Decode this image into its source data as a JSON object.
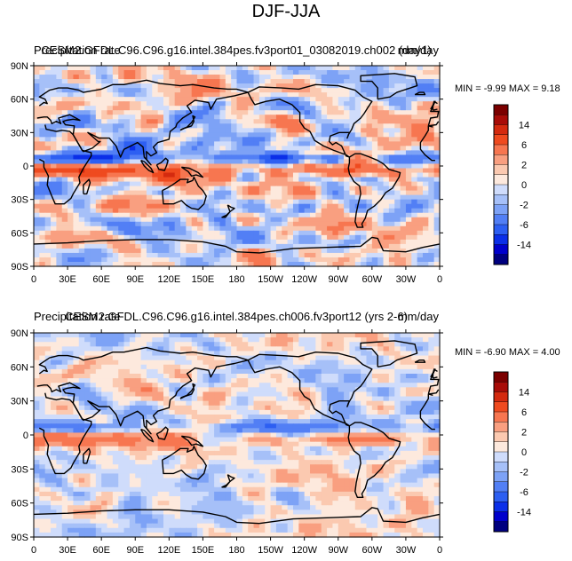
{
  "title": "DJF-JJA",
  "colors": {
    "levels": [
      "#00007f",
      "#0000cc",
      "#0b2fe8",
      "#2d5ff2",
      "#527ff5",
      "#7da2f6",
      "#a6c0f8",
      "#cfdcfb",
      "#fde9dd",
      "#fbc9b0",
      "#f99f80",
      "#f77650",
      "#ef4a1f",
      "#d42a0f",
      "#a80c08",
      "#7b0000"
    ],
    "continent_line": "#000000"
  },
  "chart_data": [
    {
      "type": "heatmap",
      "title_left": "Precipitation rate",
      "title_center": "CESM2.GFDL.C96.C96.g16.intel.384pes.fv3port01_03082019.ch002 (day1)",
      "title_right": "mm/day",
      "stats_text": "MIN = -9.99  MAX = 9.18",
      "min": -9.99,
      "max": 9.18,
      "x_ticks": [
        "0",
        "30E",
        "60E",
        "90E",
        "120E",
        "150E",
        "180",
        "150W",
        "120W",
        "90W",
        "60W",
        "30W",
        "0"
      ],
      "y_ticks": [
        "90N",
        "60N",
        "30N",
        "0",
        "30S",
        "60S",
        "90S"
      ],
      "colorbar_labels": [
        "14",
        "6",
        "2",
        "0",
        "-2",
        "-6",
        "-14"
      ],
      "xlim": [
        0,
        360
      ],
      "ylim": [
        -90,
        90
      ],
      "seed": 11,
      "itcz_strength": 1.0,
      "noise_amp": 1.0
    },
    {
      "type": "heatmap",
      "title_left": "Precipitation rate",
      "title_center": "CESM2.GFDL.C96.C96.g16.intel.384pes.ch006.fv3port12 (yrs 2-6)",
      "title_right": "mm/day",
      "stats_text": "MIN = -6.90  MAX = 4.00",
      "min": -6.9,
      "max": 4.0,
      "x_ticks": [
        "0",
        "30E",
        "60E",
        "90E",
        "120E",
        "150E",
        "180",
        "150W",
        "120W",
        "90W",
        "60W",
        "30W",
        "0"
      ],
      "y_ticks": [
        "90N",
        "60N",
        "30N",
        "0",
        "30S",
        "60S",
        "90S"
      ],
      "colorbar_labels": [
        "14",
        "6",
        "2",
        "0",
        "-2",
        "-6",
        "-14"
      ],
      "xlim": [
        0,
        360
      ],
      "ylim": [
        -90,
        90
      ],
      "seed": 29,
      "itcz_strength": 0.6,
      "noise_amp": 0.55
    }
  ]
}
